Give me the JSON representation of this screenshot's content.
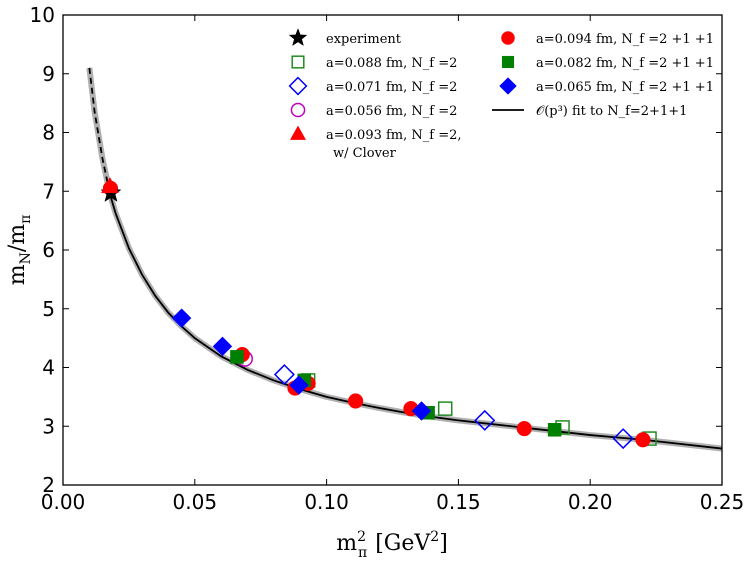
{
  "chart_data": {
    "type": "scatter",
    "xlabel": "m²_π [GeV²]",
    "ylabel": "m_N / m_π",
    "xlim": [
      0.0,
      0.25
    ],
    "ylim": [
      2,
      10
    ],
    "xticks": [
      "0.00",
      "0.05",
      "0.10",
      "0.15",
      "0.20",
      "0.25"
    ],
    "xtick_values": [
      0.0,
      0.05,
      0.1,
      0.15,
      0.2,
      0.25
    ],
    "yticks": [
      "2",
      "3",
      "4",
      "5",
      "6",
      "7",
      "8",
      "9",
      "10"
    ],
    "ytick_values": [
      2,
      3,
      4,
      5,
      6,
      7,
      8,
      9,
      10
    ],
    "grid": false,
    "legend_position": "top-right",
    "fit_curve": {
      "name": "𝒪(p³) fit to N_f=2+1+1",
      "x": [
        0.01,
        0.012,
        0.015,
        0.018,
        0.02,
        0.025,
        0.03,
        0.035,
        0.04,
        0.045,
        0.05,
        0.06,
        0.07,
        0.08,
        0.09,
        0.1,
        0.11,
        0.12,
        0.13,
        0.14,
        0.15,
        0.16,
        0.18,
        0.2,
        0.22,
        0.25
      ],
      "y": [
        9.1,
        8.35,
        7.55,
        6.92,
        6.62,
        6.03,
        5.58,
        5.22,
        4.93,
        4.7,
        4.5,
        4.19,
        3.96,
        3.78,
        3.63,
        3.5,
        3.4,
        3.31,
        3.23,
        3.16,
        3.1,
        3.05,
        2.95,
        2.85,
        2.77,
        2.62
      ]
    },
    "series": [
      {
        "name": "experiment",
        "marker": "star",
        "color": "#000000",
        "filled": true,
        "x": [
          0.0182
        ],
        "y": [
          6.97
        ]
      },
      {
        "name": "a=0.088 fm, N_f =2",
        "marker": "square",
        "color": "#228B22",
        "filled": false,
        "x": [
          0.093,
          0.145,
          0.1895,
          0.2225
        ],
        "y": [
          3.78,
          3.3,
          2.98,
          2.79
        ]
      },
      {
        "name": "a=0.071 fm, N_f =2",
        "marker": "diamond",
        "color": "#0000FF",
        "filled": false,
        "x": [
          0.084,
          0.16,
          0.2125
        ],
        "y": [
          3.88,
          3.1,
          2.79
        ]
      },
      {
        "name": "a=0.056 fm, N_f =2",
        "marker": "circle",
        "color": "#BF00BF",
        "filled": false,
        "x": [
          0.069
        ],
        "y": [
          4.15
        ]
      },
      {
        "name": "a=0.093 fm, N_f =2,",
        "name_line2": "w/ Clover",
        "marker": "triangle",
        "color": "#FF0000",
        "filled": true,
        "x": [
          0.0178
        ],
        "y": [
          7.08
        ]
      },
      {
        "name": "a=0.094 fm, N_f =2 +1 +1",
        "marker": "circle",
        "color": "#FF0000",
        "filled": true,
        "x": [
          0.018,
          0.068,
          0.088,
          0.093,
          0.111,
          0.132,
          0.175,
          0.22
        ],
        "y": [
          7.05,
          4.22,
          3.65,
          3.73,
          3.43,
          3.3,
          2.96,
          2.77
        ]
      },
      {
        "name": "a=0.082 fm, N_f =2 +1 +1",
        "marker": "square",
        "color": "#008000",
        "filled": true,
        "x": [
          0.066,
          0.0915,
          0.1385,
          0.1865
        ],
        "y": [
          4.18,
          3.78,
          3.23,
          2.94
        ]
      },
      {
        "name": "a=0.065 fm, N_f =2 +1 +1",
        "marker": "diamond",
        "color": "#0000FF",
        "filled": true,
        "x": [
          0.045,
          0.0605,
          0.0895,
          0.136
        ],
        "y": [
          4.84,
          4.36,
          3.7,
          3.26
        ]
      }
    ]
  }
}
